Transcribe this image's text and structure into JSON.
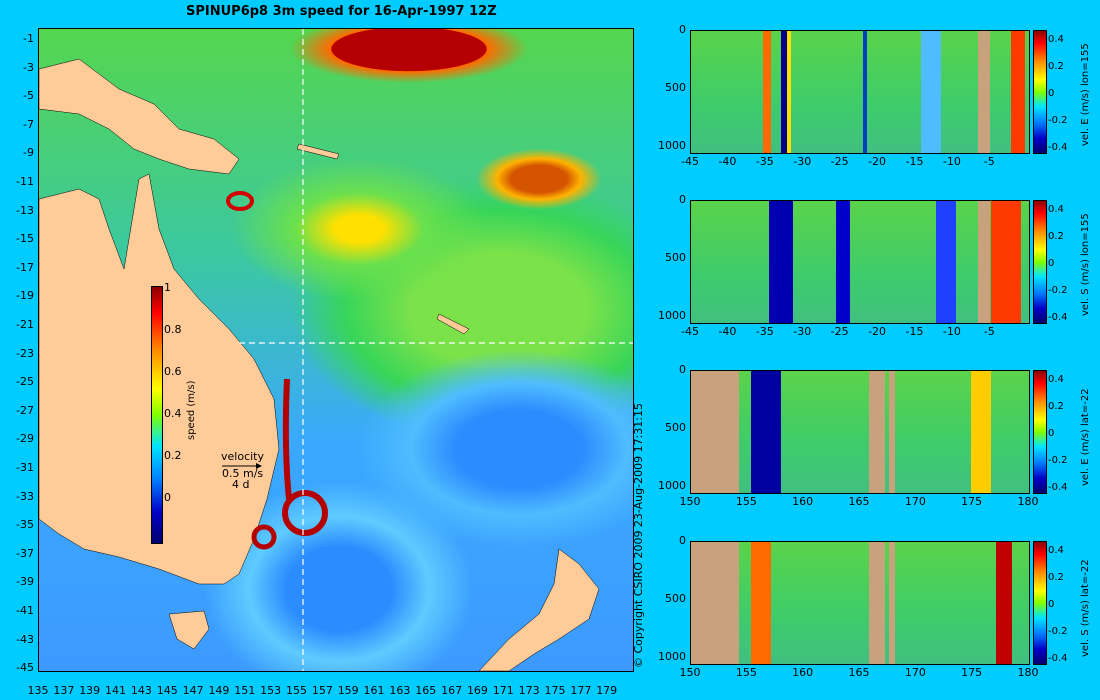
{
  "title": "SPINUP6p8 3m speed for 16-Apr-1997 12Z",
  "map": {
    "y_ticks": [
      "-1",
      "-3",
      "-5",
      "-7",
      "-9",
      "-11",
      "-13",
      "-15",
      "-17",
      "-19",
      "-21",
      "-23",
      "-25",
      "-27",
      "-29",
      "-31",
      "-33",
      "-35",
      "-37",
      "-39",
      "-41",
      "-43",
      "-45"
    ],
    "x_ticks": [
      "135",
      "137",
      "139",
      "141",
      "143",
      "145",
      "147",
      "149",
      "151",
      "153",
      "155",
      "157",
      "159",
      "161",
      "163",
      "165",
      "167",
      "169",
      "171",
      "173",
      "175",
      "177",
      "179"
    ],
    "speed_colorbar": {
      "label": "speed (m/s)",
      "ticks": [
        "1",
        "0.8",
        "0.6",
        "0.4",
        "0.2",
        "0"
      ]
    },
    "velocity_key": {
      "title": "velocity",
      "arrow_label": "0.5 m/s",
      "time_label": "4 d"
    },
    "section_lines": {
      "lon": "155",
      "lat": "-22"
    }
  },
  "panels": [
    {
      "label": "vel. E (m/s) lon=155",
      "x_ticks": [
        "-45",
        "-40",
        "-35",
        "-30",
        "-25",
        "-20",
        "-15",
        "-10",
        "-5"
      ],
      "y_ticks": [
        "0",
        "500",
        "1000"
      ],
      "cbar_ticks": [
        "0.4",
        "0.2",
        "0",
        "-0.2",
        "-0.4"
      ]
    },
    {
      "label": "vel. S (m/s) lon=155",
      "x_ticks": [
        "-45",
        "-40",
        "-35",
        "-30",
        "-25",
        "-20",
        "-15",
        "-10",
        "-5"
      ],
      "y_ticks": [
        "0",
        "500",
        "1000"
      ],
      "cbar_ticks": [
        "0.4",
        "0.2",
        "0",
        "-0.2",
        "-0.4"
      ]
    },
    {
      "label": "vel. E (m/s) lat=-22",
      "x_ticks": [
        "150",
        "155",
        "160",
        "165",
        "170",
        "175",
        "180"
      ],
      "y_ticks": [
        "0",
        "500",
        "1000"
      ],
      "cbar_ticks": [
        "0.4",
        "0.2",
        "0",
        "-0.2",
        "-0.4"
      ]
    },
    {
      "label": "vel. S (m/s) lat=-22",
      "x_ticks": [
        "150",
        "155",
        "160",
        "165",
        "170",
        "175",
        "180"
      ],
      "y_ticks": [
        "0",
        "500",
        "1000"
      ],
      "cbar_ticks": [
        "0.4",
        "0.2",
        "0",
        "-0.2",
        "-0.4"
      ]
    }
  ],
  "copyright": "© Copyright CSIRO 2009   23-Aug-2009 17:31:15",
  "colors": {
    "background": "#00ccff",
    "land": "#ffcc99",
    "section_land": "#c8a27c"
  }
}
